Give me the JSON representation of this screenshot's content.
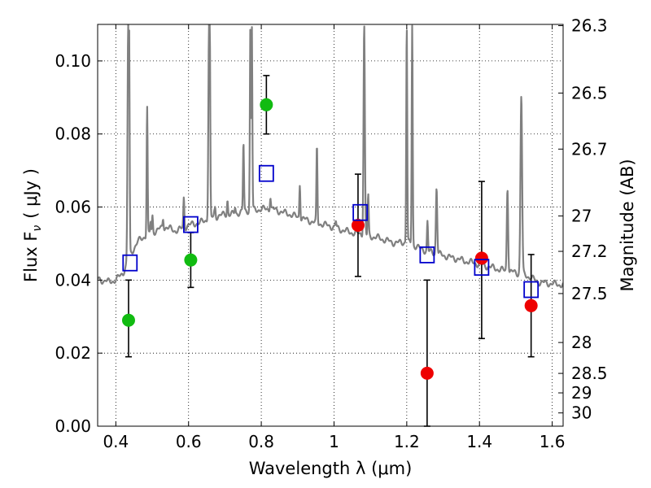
{
  "chart_data": {
    "type": "scatter",
    "xlabel": "Wavelength  λ (μm)",
    "ylabel": "Flux  F",
    "ylabel_sub": "ν",
    "ylabel_unit": "( μJy )",
    "y2label": "Magnitude (AB)",
    "xlim": [
      0.35,
      1.63
    ],
    "ylim": [
      0.0,
      0.11
    ],
    "grid": true,
    "xticks": [
      {
        "v": 0.4,
        "label": "0.4"
      },
      {
        "v": 0.6,
        "label": "0.6"
      },
      {
        "v": 0.8,
        "label": "0.8"
      },
      {
        "v": 1.0,
        "label": "1"
      },
      {
        "v": 1.2,
        "label": "1.2"
      },
      {
        "v": 1.4,
        "label": "1.4"
      },
      {
        "v": 1.6,
        "label": "1.6"
      }
    ],
    "yticks": [
      {
        "v": 0.0,
        "label": "0.00"
      },
      {
        "v": 0.02,
        "label": "0.02"
      },
      {
        "v": 0.04,
        "label": "0.04"
      },
      {
        "v": 0.06,
        "label": "0.06"
      },
      {
        "v": 0.08,
        "label": "0.08"
      },
      {
        "v": 0.1,
        "label": "0.10"
      }
    ],
    "mag_ticks": [
      {
        "mag": 26.3,
        "label": "26.3"
      },
      {
        "mag": 26.5,
        "label": "26.5"
      },
      {
        "mag": 26.7,
        "label": "26.7"
      },
      {
        "mag": 27.0,
        "label": "27"
      },
      {
        "mag": 27.2,
        "label": "27.2"
      },
      {
        "mag": 27.5,
        "label": "27.5"
      },
      {
        "mag": 28.0,
        "label": "28"
      },
      {
        "mag": 28.5,
        "label": "28.5"
      },
      {
        "mag": 29.0,
        "label": "29"
      },
      {
        "mag": 30.0,
        "label": "30"
      }
    ],
    "series": [
      {
        "name": "model-spectrum",
        "kind": "line",
        "color": "#808080",
        "continuum": [
          [
            0.35,
            0.0402
          ],
          [
            0.38,
            0.0395
          ],
          [
            0.4,
            0.04
          ],
          [
            0.42,
            0.042
          ],
          [
            0.44,
            0.047
          ],
          [
            0.46,
            0.0505
          ],
          [
            0.48,
            0.052
          ],
          [
            0.5,
            0.053
          ],
          [
            0.52,
            0.054
          ],
          [
            0.54,
            0.0545
          ],
          [
            0.56,
            0.0535
          ],
          [
            0.58,
            0.054
          ],
          [
            0.6,
            0.055
          ],
          [
            0.62,
            0.0555
          ],
          [
            0.64,
            0.056
          ],
          [
            0.66,
            0.057
          ],
          [
            0.68,
            0.0575
          ],
          [
            0.7,
            0.058
          ],
          [
            0.72,
            0.058
          ],
          [
            0.74,
            0.0585
          ],
          [
            0.76,
            0.059
          ],
          [
            0.78,
            0.0592
          ],
          [
            0.8,
            0.0594
          ],
          [
            0.82,
            0.0595
          ],
          [
            0.84,
            0.0592
          ],
          [
            0.86,
            0.0585
          ],
          [
            0.88,
            0.058
          ],
          [
            0.9,
            0.0572
          ],
          [
            0.92,
            0.0566
          ],
          [
            0.94,
            0.056
          ],
          [
            0.96,
            0.0555
          ],
          [
            0.98,
            0.055
          ],
          [
            1.0,
            0.0545
          ],
          [
            1.02,
            0.0538
          ],
          [
            1.04,
            0.0532
          ],
          [
            1.06,
            0.0528
          ],
          [
            1.08,
            0.0525
          ],
          [
            1.1,
            0.052
          ],
          [
            1.12,
            0.0516
          ],
          [
            1.14,
            0.051
          ],
          [
            1.16,
            0.0503
          ],
          [
            1.18,
            0.0502
          ],
          [
            1.2,
            0.0505
          ],
          [
            1.22,
            0.0495
          ],
          [
            1.24,
            0.0485
          ],
          [
            1.26,
            0.0478
          ],
          [
            1.28,
            0.0473
          ],
          [
            1.3,
            0.0468
          ],
          [
            1.32,
            0.0462
          ],
          [
            1.34,
            0.0458
          ],
          [
            1.36,
            0.0452
          ],
          [
            1.38,
            0.0448
          ],
          [
            1.4,
            0.0443
          ],
          [
            1.42,
            0.0438
          ],
          [
            1.44,
            0.0433
          ],
          [
            1.46,
            0.0428
          ],
          [
            1.48,
            0.0424
          ],
          [
            1.5,
            0.042
          ],
          [
            1.52,
            0.0415
          ],
          [
            1.54,
            0.0408
          ],
          [
            1.56,
            0.0395
          ],
          [
            1.58,
            0.0392
          ],
          [
            1.6,
            0.039
          ],
          [
            1.63,
            0.0387
          ]
        ],
        "emission_lines": [
          {
            "x": 0.372,
            "peak": 0.04,
            "w": 0.003
          },
          {
            "x": 0.434,
            "peak": 0.11,
            "w": 0.004
          },
          {
            "x": 0.4365,
            "peak": 0.11,
            "w": 0.003
          },
          {
            "x": 0.4861,
            "peak": 0.0875,
            "w": 0.003
          },
          {
            "x": 0.4959,
            "peak": 0.056,
            "w": 0.003
          },
          {
            "x": 0.5007,
            "peak": 0.0575,
            "w": 0.003
          },
          {
            "x": 0.53,
            "peak": 0.057,
            "w": 0.003
          },
          {
            "x": 0.587,
            "peak": 0.0625,
            "w": 0.003
          },
          {
            "x": 0.6563,
            "peak": 0.11,
            "w": 0.004
          },
          {
            "x": 0.6583,
            "peak": 0.11,
            "w": 0.003
          },
          {
            "x": 0.6716,
            "peak": 0.059,
            "w": 0.003
          },
          {
            "x": 0.673,
            "peak": 0.06,
            "w": 0.003
          },
          {
            "x": 0.707,
            "peak": 0.062,
            "w": 0.003
          },
          {
            "x": 0.728,
            "peak": 0.06,
            "w": 0.003
          },
          {
            "x": 0.751,
            "peak": 0.0775,
            "w": 0.003
          },
          {
            "x": 0.77,
            "peak": 0.11,
            "w": 0.003
          },
          {
            "x": 0.774,
            "peak": 0.11,
            "w": 0.003
          },
          {
            "x": 0.825,
            "peak": 0.063,
            "w": 0.003
          },
          {
            "x": 0.906,
            "peak": 0.0665,
            "w": 0.003
          },
          {
            "x": 0.953,
            "peak": 0.0765,
            "w": 0.003
          },
          {
            "x": 1.005,
            "peak": 0.056,
            "w": 0.003
          },
          {
            "x": 1.083,
            "peak": 0.11,
            "w": 0.004
          },
          {
            "x": 1.094,
            "peak": 0.063,
            "w": 0.003
          },
          {
            "x": 1.257,
            "peak": 0.056,
            "w": 0.003
          },
          {
            "x": 1.282,
            "peak": 0.0655,
            "w": 0.004
          },
          {
            "x": 1.215,
            "peak": 0.11,
            "w": 0.003
          },
          {
            "x": 1.2,
            "peak": 0.11,
            "w": 0.003
          },
          {
            "x": 1.477,
            "peak": 0.0655,
            "w": 0.004
          },
          {
            "x": 1.515,
            "peak": 0.0905,
            "w": 0.005
          }
        ]
      },
      {
        "name": "observed-green",
        "kind": "points",
        "color": "#11bb11",
        "points": [
          {
            "x": 0.435,
            "y": 0.029,
            "ylo": 0.019,
            "yhi": 0.04
          },
          {
            "x": 0.606,
            "y": 0.0455,
            "ylo": 0.038,
            "yhi": 0.053
          },
          {
            "x": 0.814,
            "y": 0.088,
            "ylo": 0.08,
            "yhi": 0.096
          }
        ]
      },
      {
        "name": "observed-red",
        "kind": "points",
        "color": "#ee0000",
        "points": [
          {
            "x": 1.066,
            "y": 0.055,
            "ylo": 0.041,
            "yhi": 0.069
          },
          {
            "x": 1.256,
            "y": 0.0145,
            "ylo": 0.0,
            "yhi": 0.04
          },
          {
            "x": 1.406,
            "y": 0.046,
            "ylo": 0.024,
            "yhi": 0.067
          },
          {
            "x": 1.542,
            "y": 0.033,
            "ylo": 0.019,
            "yhi": 0.047
          }
        ]
      },
      {
        "name": "model-photometry",
        "kind": "squares",
        "color": "#0000cc",
        "points": [
          {
            "x": 0.439,
            "y": 0.0447
          },
          {
            "x": 0.606,
            "y": 0.0552
          },
          {
            "x": 0.814,
            "y": 0.0692
          },
          {
            "x": 1.072,
            "y": 0.0585
          },
          {
            "x": 1.256,
            "y": 0.0469
          },
          {
            "x": 1.406,
            "y": 0.0435
          },
          {
            "x": 1.542,
            "y": 0.0374
          }
        ]
      }
    ]
  }
}
